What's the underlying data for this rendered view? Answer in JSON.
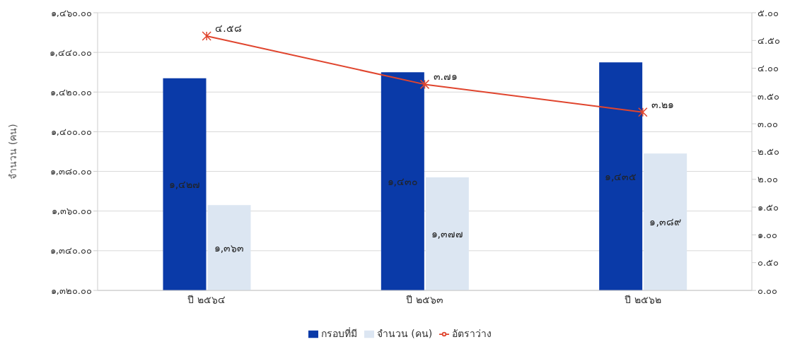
{
  "chart_data": {
    "type": "bar",
    "categories": [
      "ปี ๒๕๖๔",
      "ปี ๒๕๖๓",
      "ปี ๒๕๖๒"
    ],
    "ylabel": "จำนวน (คน)",
    "series": [
      {
        "name": "กรอบที่มี",
        "color": "#0a3aa8",
        "values": [
          1427,
          1430,
          1435
        ],
        "value_labels": [
          "๑,๔๒๗",
          "๑,๔๓๐",
          "๑,๔๓๕"
        ]
      },
      {
        "name": "จำนวน (คน)",
        "color": "#dce6f2",
        "values": [
          1363,
          1377,
          1389
        ],
        "value_labels": [
          "๑,๓๖๓",
          "๑,๓๗๗",
          "๑,๓๘๙"
        ]
      },
      {
        "name": "อัตราว่าง",
        "type": "line",
        "axis": "y2",
        "color": "#e0452e",
        "marker": "cross",
        "values": [
          4.58,
          3.71,
          3.21
        ],
        "value_labels": [
          "๔.๕๘",
          "๓.๗๑",
          "๓.๒๑"
        ]
      }
    ],
    "ylim": [
      1320,
      1460
    ],
    "yticks": [
      {
        "value": 1320,
        "label": "๑,๓๒๐.๐๐"
      },
      {
        "value": 1340,
        "label": "๑,๓๔๐.๐๐"
      },
      {
        "value": 1360,
        "label": "๑,๓๖๐.๐๐"
      },
      {
        "value": 1380,
        "label": "๑,๓๘๐.๐๐"
      },
      {
        "value": 1400,
        "label": "๑,๔๐๐.๐๐"
      },
      {
        "value": 1420,
        "label": "๑,๔๒๐.๐๐"
      },
      {
        "value": 1440,
        "label": "๑,๔๔๐.๐๐"
      },
      {
        "value": 1460,
        "label": "๑,๔๖๐.๐๐"
      }
    ],
    "y2lim": [
      0,
      5
    ],
    "y2ticks": [
      {
        "value": 0,
        "label": "๐.๐๐"
      },
      {
        "value": 0.5,
        "label": "๐.๕๐"
      },
      {
        "value": 1,
        "label": "๑.๐๐"
      },
      {
        "value": 1.5,
        "label": "๑.๕๐"
      },
      {
        "value": 2,
        "label": "๒.๐๐"
      },
      {
        "value": 2.5,
        "label": "๒.๕๐"
      },
      {
        "value": 3,
        "label": "๓.๐๐"
      },
      {
        "value": 3.5,
        "label": "๓.๕๐"
      },
      {
        "value": 4,
        "label": "๔.๐๐"
      },
      {
        "value": 4.5,
        "label": "๔.๕๐"
      },
      {
        "value": 5,
        "label": "๕.๐๐"
      }
    ],
    "grid": "y",
    "legend": "bottom"
  }
}
